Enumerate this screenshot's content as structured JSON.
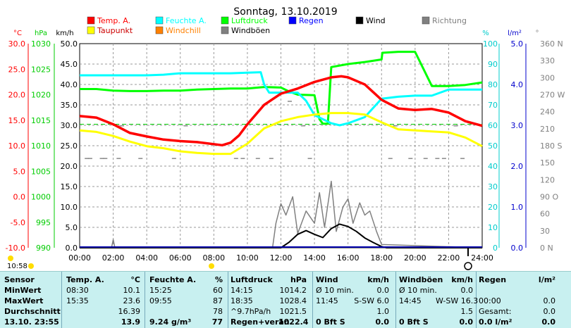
{
  "title": "Sonntag, 13.10.2019",
  "chart_data": {
    "type": "line",
    "title": "Sonntag, 13.10.2019",
    "x_ticks": [
      "00:00",
      "02:00",
      "04:00",
      "06:00",
      "08:00",
      "10:00",
      "12:00",
      "14:00",
      "16:00",
      "18:00",
      "20:00",
      "22:00",
      "24:00"
    ],
    "axes": [
      {
        "unit": "°C",
        "ticks": [
          "30.0",
          "25.0",
          "20.0",
          "15.0",
          "10.0",
          "5.0",
          "0.0",
          "-5.0",
          "-10.0"
        ],
        "color": "#ff0000",
        "range": [
          -10,
          30
        ]
      },
      {
        "unit": "hPa",
        "ticks": [
          "1030",
          "1025",
          "1020",
          "1015",
          "1010",
          "1005",
          "1000",
          "995",
          "990"
        ],
        "color": "#00cc00",
        "range": [
          990,
          1030
        ]
      },
      {
        "unit": "km/h",
        "ticks": [
          "50.0",
          "45.0",
          "40.0",
          "35.0",
          "30.0",
          "25.0",
          "20.0",
          "15.0",
          "10.0",
          "5.0",
          "0.0"
        ],
        "color": "#000000",
        "range": [
          0,
          50
        ]
      },
      {
        "unit": "%",
        "ticks": [
          "100",
          "90",
          "80",
          "70",
          "60",
          "50",
          "40",
          "30",
          "20",
          "10",
          "0"
        ],
        "color": "#00cccc",
        "range": [
          0,
          100
        ]
      },
      {
        "unit": "l/m²",
        "ticks": [
          "5.0",
          "4.0",
          "3.0",
          "2.0",
          "1.0",
          "0.0"
        ],
        "color": "#0000cc",
        "range": [
          0,
          5
        ]
      },
      {
        "unit": "°",
        "ticks": [
          "360 N",
          "330",
          "300",
          "270 W",
          "240",
          "210",
          "180 S",
          "150",
          "120",
          "90 O",
          "60",
          "30",
          "0 N"
        ],
        "color": "#808080",
        "range": [
          0,
          360
        ]
      }
    ],
    "legend": [
      {
        "name": "Temp. A.",
        "color": "#ff0000"
      },
      {
        "name": "Feuchte A.",
        "color": "#00ffff"
      },
      {
        "name": "Luftdruck",
        "color": "#00ff00"
      },
      {
        "name": "Regen",
        "color": "#0000ff"
      },
      {
        "name": "Wind",
        "color": "#000000"
      },
      {
        "name": "Richtung",
        "color": "#808080"
      },
      {
        "name": "Taupunkt",
        "color": "#ffff00"
      },
      {
        "name": "Windchill",
        "color": "#ff8000"
      },
      {
        "name": "Windböen",
        "color": "#808080"
      }
    ],
    "series": [
      {
        "name": "Temp. A.",
        "color": "#ff0000",
        "x": [
          0,
          1,
          2,
          3,
          4,
          5,
          6,
          7,
          8,
          8.5,
          9,
          9.5,
          10,
          11,
          12,
          13,
          14,
          15,
          15.6,
          16,
          17,
          18,
          19,
          20,
          21,
          22,
          23,
          24
        ],
        "values": [
          15.8,
          15.5,
          14.2,
          12.5,
          11.8,
          11.2,
          10.9,
          10.7,
          10.3,
          10.1,
          10.6,
          12.0,
          14.2,
          18.0,
          20.2,
          21.2,
          22.5,
          23.4,
          23.6,
          23.4,
          22.0,
          19.0,
          17.3,
          17.0,
          17.2,
          16.5,
          14.8,
          13.9
        ]
      },
      {
        "name": "Taupunkt",
        "color": "#ffff00",
        "x": [
          0,
          1,
          2,
          3,
          4,
          5,
          6,
          7,
          8,
          9,
          10,
          11,
          12,
          13,
          14,
          15,
          16,
          17,
          18,
          19,
          20,
          21,
          22,
          23,
          24
        ],
        "values": [
          13.0,
          12.7,
          11.9,
          10.8,
          9.9,
          9.5,
          8.9,
          8.6,
          8.4,
          8.4,
          10.4,
          13.4,
          14.8,
          15.6,
          16.1,
          16.4,
          16.4,
          16.1,
          14.6,
          13.2,
          13.0,
          12.8,
          12.6,
          11.6,
          9.9
        ]
      },
      {
        "name": "Feuchte A.",
        "color": "#00ffff",
        "x": [
          0,
          1,
          2,
          3,
          4,
          5,
          6,
          7,
          8,
          9,
          10,
          10.8,
          11,
          11.3,
          12,
          13,
          13.5,
          14,
          14.5,
          15,
          15.5,
          16,
          17,
          18,
          19,
          20,
          21,
          22,
          23,
          24
        ],
        "values": [
          84.5,
          84.5,
          84.5,
          84.5,
          84.5,
          84.8,
          85.5,
          85.5,
          85.5,
          85.5,
          85.8,
          86,
          80,
          76,
          76,
          76,
          72,
          65,
          63,
          61,
          60,
          61,
          64,
          73,
          74,
          74.5,
          74.5,
          77.5,
          77.5,
          77.5
        ]
      },
      {
        "name": "Luftdruck",
        "color": "#00ff00",
        "x": [
          0,
          1,
          2,
          3,
          4,
          5,
          6,
          7,
          8,
          9,
          10,
          11,
          12,
          12.5,
          13,
          14,
          14.3,
          14.5,
          14.8,
          15,
          16,
          17,
          18,
          18.05,
          19,
          20,
          21,
          22,
          23,
          24
        ],
        "values": [
          1021.1,
          1021.1,
          1020.8,
          1020.7,
          1020.7,
          1020.8,
          1020.8,
          1021.0,
          1021.1,
          1021.2,
          1021.2,
          1021.5,
          1021.4,
          1020.6,
          1020.0,
          1019.9,
          1015.2,
          1014.3,
          1014.3,
          1025.4,
          1026.0,
          1026.4,
          1026.9,
          1028.2,
          1028.4,
          1028.4,
          1021.7,
          1021.7,
          1021.9,
          1022.4
        ]
      },
      {
        "name": "Wind",
        "color": "#000000",
        "x": [
          0,
          12,
          12.5,
          13,
          13.5,
          14,
          14.5,
          15,
          15.5,
          16,
          16.5,
          17,
          17.5,
          18,
          18.3,
          24
        ],
        "values": [
          0,
          0,
          1.4,
          3.3,
          4.2,
          3.3,
          2.5,
          4.7,
          5.8,
          5.2,
          4.0,
          2.4,
          1.3,
          0.3,
          0,
          0
        ]
      },
      {
        "name": "Windböen",
        "color": "#808080",
        "x": [
          0,
          1.9,
          2.0,
          2.1,
          11.5,
          11.7,
          12,
          12.3,
          12.7,
          13,
          13.5,
          14,
          14.3,
          14.6,
          15,
          15.3,
          15.7,
          16,
          16.3,
          16.7,
          17,
          17.3,
          17.7,
          18,
          24
        ],
        "values": [
          0,
          0,
          2.0,
          0,
          0,
          6.0,
          10.8,
          8.0,
          12.5,
          3.5,
          9.0,
          6.0,
          13.5,
          5.0,
          16.3,
          4.0,
          10.0,
          12.0,
          6.0,
          11.0,
          8.0,
          9.0,
          4.0,
          0.8,
          0
        ]
      }
    ]
  },
  "clock": {
    "left": "10:58"
  },
  "stats": {
    "headers": [
      "Sensor",
      "Temp. A.",
      "°C",
      "Feuchte A.",
      "%",
      "Luftdruck",
      "hPa",
      "Wind",
      "km/h",
      "Windböen",
      "km/h",
      "Regen",
      "l/m²"
    ],
    "rows": [
      [
        "MinWert",
        "08:30",
        "10.1",
        "15:25",
        "60",
        "14:15",
        "1014.2",
        "Ø 10 min.",
        "0.0",
        "Ø 10 min.",
        "0.0",
        "",
        ""
      ],
      [
        "MaxWert",
        "15:35",
        "23.6",
        "09:55",
        "87",
        "18:35",
        "1028.4",
        "11:45",
        "S-SW 6.0",
        "14:45",
        "W-SW 16.3",
        "00:00",
        "0.0"
      ],
      [
        "Durchschnitt",
        "",
        "16.39",
        "",
        "78",
        "^9.7hPa/h",
        "1021.5",
        "",
        "1.0",
        "",
        "1.5",
        "Gesamt:",
        "0.0"
      ],
      [
        "13.10. 23:55",
        "",
        "13.9",
        "9.24 g/m³",
        "77",
        "Regen+verän",
        "1022.4",
        "0 Bft S",
        "0.0",
        "0 Bft S",
        "0.0",
        "0.0 l/m²",
        "0.0"
      ]
    ]
  }
}
